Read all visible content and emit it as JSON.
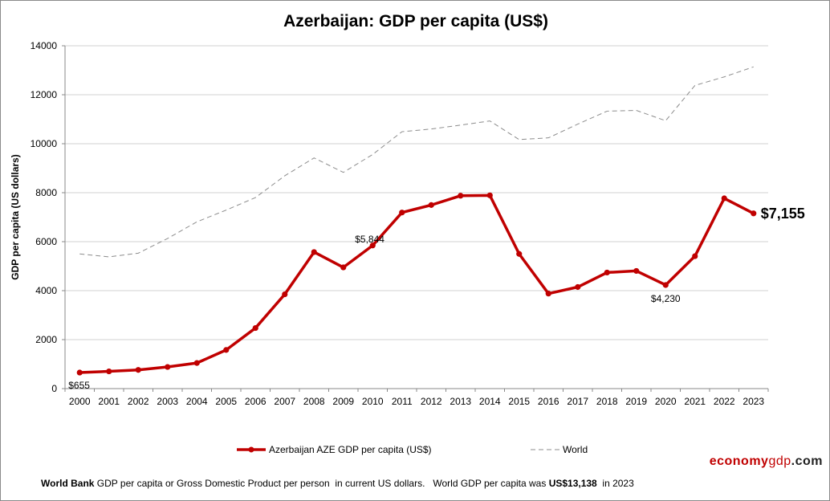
{
  "chart_data": {
    "type": "line",
    "title": "Azerbaijan: GDP per capita (US$)",
    "xlabel": "",
    "ylabel": "GDP per capita (US dollars)",
    "ylim": [
      0,
      14000
    ],
    "yticks": [
      0,
      2000,
      4000,
      6000,
      8000,
      10000,
      12000,
      14000
    ],
    "grid": true,
    "legend_position": "bottom",
    "categories": [
      "2000",
      "2001",
      "2002",
      "2003",
      "2004",
      "2005",
      "2006",
      "2007",
      "2008",
      "2009",
      "2010",
      "2011",
      "2012",
      "2013",
      "2014",
      "2015",
      "2016",
      "2017",
      "2018",
      "2019",
      "2020",
      "2021",
      "2022",
      "2023"
    ],
    "series": [
      {
        "name": "Azerbaijan AZE GDP per capita (US$)",
        "color": "#c00000",
        "style": "solid-markers",
        "values": [
          655,
          703,
          763,
          884,
          1045,
          1578,
          2473,
          3851,
          5575,
          4950,
          5844,
          7190,
          7496,
          7876,
          7891,
          5500,
          3880,
          4147,
          4740,
          4806,
          4230,
          5408,
          7770,
          7155
        ]
      },
      {
        "name": "World",
        "color": "#8c8c8c",
        "style": "dashed",
        "values": [
          5500,
          5380,
          5530,
          6130,
          6810,
          7290,
          7800,
          8690,
          9420,
          8830,
          9560,
          10490,
          10600,
          10760,
          10930,
          10170,
          10240,
          10800,
          11330,
          11360,
          10940,
          12380,
          12730,
          13138
        ]
      }
    ],
    "annotations": [
      {
        "year": "2000",
        "text": "$655"
      },
      {
        "year": "2010",
        "text": "$5,844"
      },
      {
        "year": "2020",
        "text": "$4,230"
      },
      {
        "year": "2023",
        "text": "$7,155"
      }
    ]
  },
  "brand": {
    "part1": "economy",
    "part2": "gdp",
    "part3": ".com"
  },
  "footnote": {
    "bold1": "World Bank",
    "text1": " GDP per capita or Gross Domestic Product per person  in current US dollars.   World GDP per capita was ",
    "bold2": "US$13,138",
    "text2": "  in 2023"
  }
}
